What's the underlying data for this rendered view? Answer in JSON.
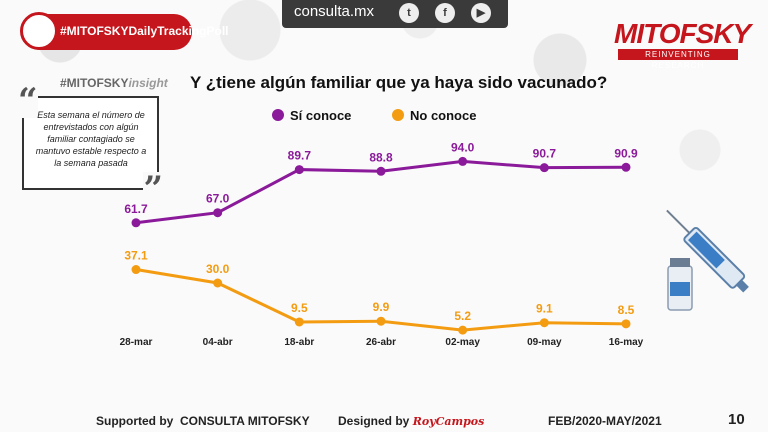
{
  "header": {
    "site": "consulta.mx",
    "social": [
      {
        "icon": "twitter-icon",
        "glyph": "t"
      },
      {
        "icon": "facebook-icon",
        "glyph": "f"
      },
      {
        "icon": "youtube-icon",
        "glyph": "▶"
      }
    ],
    "poll_tag": "#MITOFSKYDailyTrackingPoll",
    "logo_name": "MITOFSKY",
    "logo_sub": "REINVENTING RESEARCH"
  },
  "insight": {
    "tag_hash": "#MITOFSKY",
    "tag_word": "insight",
    "note": "Esta semana el número de entrevistados con algún familiar contagiado  se mantuvo estable respecto a la semana pasada"
  },
  "chart_data": {
    "type": "line",
    "title": "Y ¿tiene algún  familiar que ya haya sido vacunado?",
    "categories": [
      "28-mar",
      "04-abr",
      "18-abr",
      "26-abr",
      "02-may",
      "09-may",
      "16-may"
    ],
    "series": [
      {
        "name": "Sí conoce",
        "color": "#8b1a9a",
        "values": [
          61.7,
          67.0,
          89.7,
          88.8,
          94.0,
          90.7,
          90.9
        ]
      },
      {
        "name": "No conoce",
        "color": "#f39c12",
        "values": [
          37.1,
          30.0,
          9.5,
          9.9,
          5.2,
          9.1,
          8.5
        ]
      }
    ],
    "ylim": [
      0,
      100
    ],
    "xlabel": "",
    "ylabel": "",
    "legend": "top"
  },
  "footer": {
    "supported_label": "Supported by",
    "supported_name": "CONSULTA   MITOFSKY",
    "designed_label": "Designed by",
    "designed_sig": "RoyCampos",
    "period": "FEB/2020-MAY/2021",
    "page": "10"
  }
}
